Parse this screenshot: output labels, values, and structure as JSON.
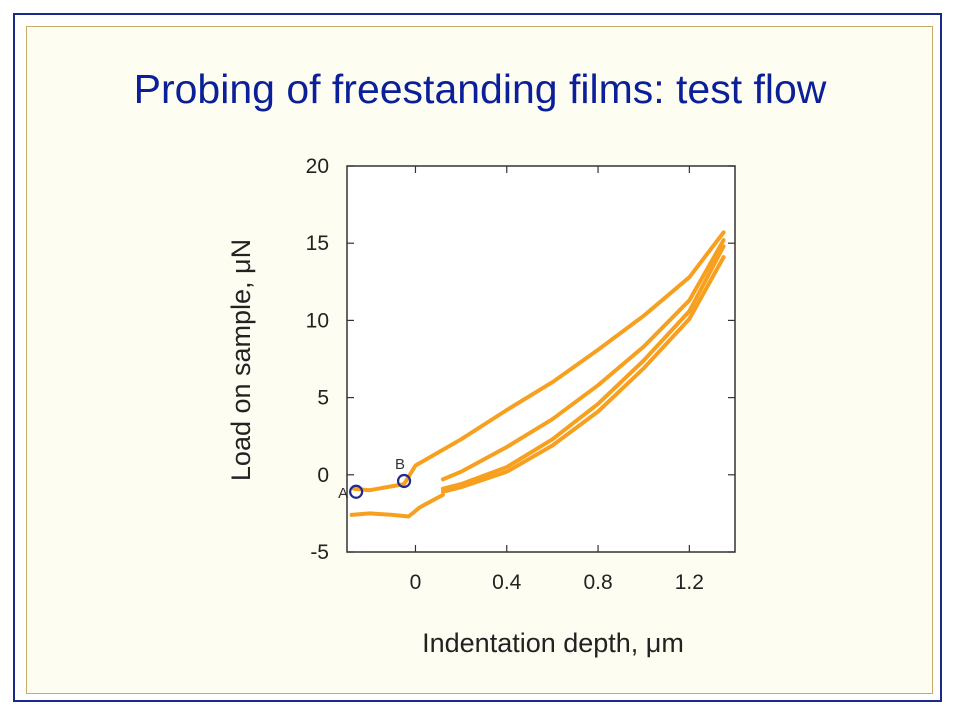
{
  "slide": {
    "title": "Probing of freestanding films: test flow",
    "colors": {
      "title": "#0b1f99",
      "frame": "#1a2a8a",
      "inner_frame": "#c8a96a",
      "background": "#fefdf2"
    }
  },
  "chart_data": {
    "type": "line",
    "title": "",
    "xlabel": "Indentation depth, μm",
    "ylabel": "Load on sample, μN",
    "xlim": [
      -0.3,
      1.4
    ],
    "ylim": [
      -5,
      20
    ],
    "xticks": [
      0,
      0.4,
      0.8,
      1.2
    ],
    "xtick_labels": [
      "0",
      "0.4",
      "0.8",
      "1.2"
    ],
    "yticks": [
      -5,
      0,
      5,
      10,
      15,
      20
    ],
    "ytick_labels": [
      "-5",
      "0",
      "5",
      "10",
      "15",
      "20"
    ],
    "grid": false,
    "series_color": "#f7a01f",
    "marker_color": "#1e2a8c",
    "series": [
      {
        "x": [
          -0.27,
          -0.2,
          -0.05,
          0.0,
          0.2,
          0.4,
          0.6,
          0.8,
          1.0,
          1.2,
          1.35
        ],
        "y": [
          -0.9,
          -1.0,
          -0.6,
          0.6,
          2.3,
          4.2,
          6.0,
          8.1,
          10.3,
          12.8,
          15.7
        ]
      },
      {
        "x": [
          0.12,
          0.2,
          0.4,
          0.6,
          0.8,
          1.0,
          1.2,
          1.35
        ],
        "y": [
          -0.3,
          0.2,
          1.8,
          3.6,
          5.8,
          8.3,
          11.3,
          15.2
        ]
      },
      {
        "x": [
          0.12,
          0.2,
          0.4,
          0.6,
          0.8,
          1.0,
          1.2,
          1.35
        ],
        "y": [
          -0.9,
          -0.6,
          0.5,
          2.3,
          4.6,
          7.4,
          10.6,
          14.8
        ]
      },
      {
        "x": [
          0.12,
          0.2,
          0.4,
          0.6,
          0.8,
          1.0,
          1.2,
          1.35
        ],
        "y": [
          -1.1,
          -0.8,
          0.2,
          1.9,
          4.1,
          6.9,
          10.1,
          14.1
        ]
      },
      {
        "x": [
          -0.28,
          -0.2,
          -0.1,
          -0.03,
          0.02,
          0.12
        ],
        "y": [
          -2.6,
          -2.5,
          -2.6,
          -2.7,
          -2.1,
          -1.3
        ]
      }
    ],
    "markers": [
      {
        "label": "A",
        "x": -0.26,
        "y": -1.1
      },
      {
        "label": "B",
        "x": -0.05,
        "y": -0.4
      }
    ]
  }
}
